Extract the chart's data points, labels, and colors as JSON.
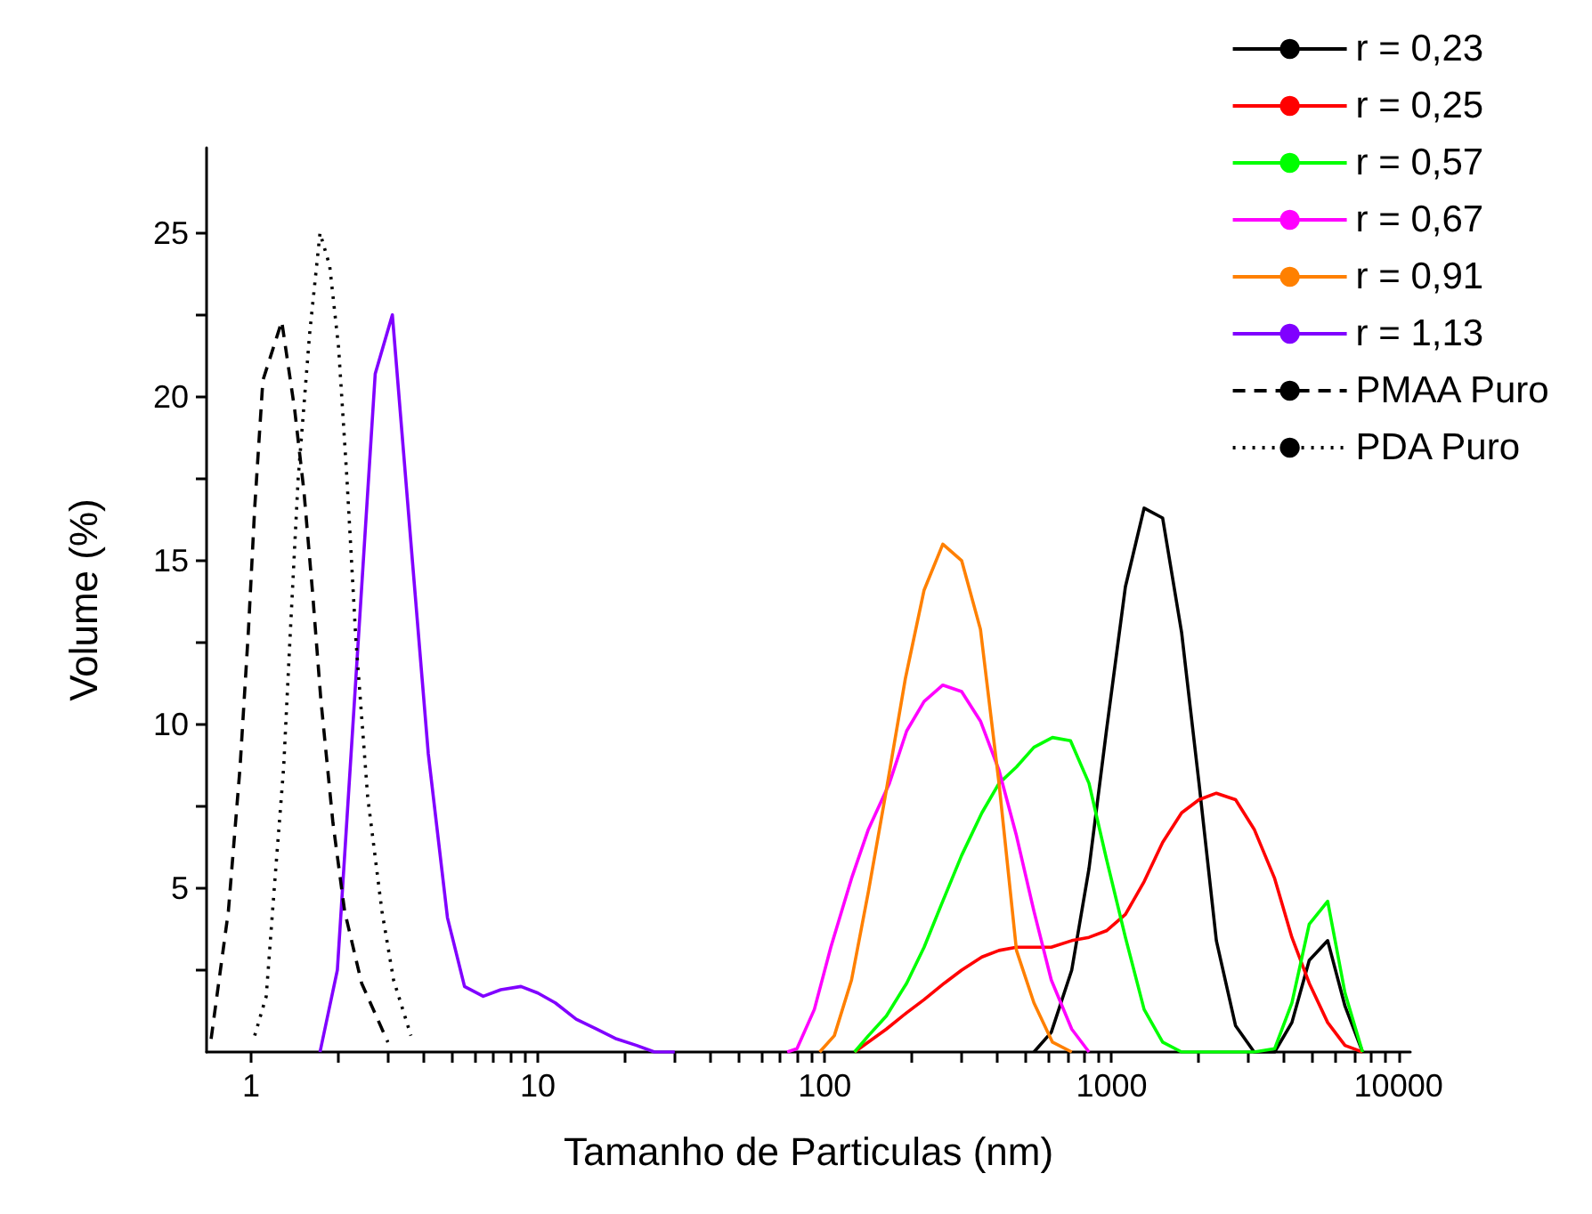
{
  "chart_data": {
    "type": "line",
    "xlabel": "Tamanho de Particulas (nm)",
    "ylabel": "Volume (%)",
    "log": "x",
    "xlim": [
      0.7,
      11000
    ],
    "ylim": [
      0,
      27.6
    ],
    "xticks": [
      1,
      {
        "value": 2,
        "label": null
      },
      {
        "value": 3,
        "label": null
      },
      {
        "value": 4,
        "label": null
      },
      {
        "value": 5,
        "label": null
      },
      {
        "value": 6,
        "label": null
      },
      {
        "value": 7,
        "label": null
      },
      {
        "value": 8,
        "label": null
      },
      {
        "value": 9,
        "label": null
      },
      10,
      {
        "value": 20,
        "label": null
      },
      {
        "value": 30,
        "label": null
      },
      {
        "value": 40,
        "label": null
      },
      {
        "value": 50,
        "label": null
      },
      {
        "value": 60,
        "label": null
      },
      {
        "value": 70,
        "label": null
      },
      {
        "value": 80,
        "label": null
      },
      {
        "value": 90,
        "label": null
      },
      100,
      {
        "value": 200,
        "label": null
      },
      {
        "value": 300,
        "label": null
      },
      {
        "value": 400,
        "label": null
      },
      {
        "value": 500,
        "label": null
      },
      {
        "value": 600,
        "label": null
      },
      {
        "value": 700,
        "label": null
      },
      {
        "value": 800,
        "label": null
      },
      {
        "value": 900,
        "label": null
      },
      1000,
      {
        "value": 2000,
        "label": null
      },
      {
        "value": 3000,
        "label": null
      },
      {
        "value": 4000,
        "label": null
      },
      {
        "value": 5000,
        "label": null
      },
      {
        "value": 6000,
        "label": null
      },
      {
        "value": 7000,
        "label": null
      },
      {
        "value": 8000,
        "label": null
      },
      {
        "value": 9000,
        "label": null
      },
      10000
    ],
    "yticks": [
      {
        "value": 2.5,
        "label": null
      },
      5,
      {
        "value": 7.5,
        "label": null
      },
      10,
      {
        "value": 12.5,
        "label": null
      },
      15,
      {
        "value": 17.5,
        "label": null
      },
      20,
      {
        "value": 22.5,
        "label": null
      },
      25
    ],
    "grid": false,
    "legend": "top right",
    "marker": "none",
    "series": [
      {
        "name": "r = 0,23",
        "color": "#000000",
        "line_style": "solid",
        "x": [
          536,
          616,
          726,
          834,
          959,
          1117,
          1298,
          1506,
          1754,
          2017,
          2318,
          2705,
          3140,
          3700,
          4250,
          4885,
          5665,
          6510,
          7495
        ],
        "values": [
          0,
          0.6,
          2.5,
          5.6,
          9.8,
          14.2,
          16.6,
          16.3,
          12.8,
          8.2,
          3.4,
          0.8,
          0,
          0,
          0.9,
          2.8,
          3.4,
          1.4,
          0
        ]
      },
      {
        "name": "r = 0,25",
        "color": "#ff0000",
        "line_style": "solid",
        "x": [
          127,
          164,
          193,
          222,
          261,
          300,
          353,
          405,
          466,
          536,
          616,
          726,
          834,
          959,
          1117,
          1298,
          1506,
          1754,
          2017,
          2318,
          2705,
          3140,
          3700,
          4250,
          4885,
          5665,
          6510,
          7495
        ],
        "values": [
          0,
          0.7,
          1.2,
          1.6,
          2.1,
          2.5,
          2.9,
          3.1,
          3.2,
          3.2,
          3.2,
          3.4,
          3.5,
          3.7,
          4.2,
          5.2,
          6.4,
          7.3,
          7.7,
          7.9,
          7.7,
          6.8,
          5.3,
          3.5,
          2.1,
          0.9,
          0.2,
          0
        ]
      },
      {
        "name": "r = 0,57",
        "color": "#00ff00",
        "line_style": "solid",
        "x": [
          127,
          142,
          164,
          193,
          222,
          255,
          300,
          353,
          405,
          466,
          536,
          622,
          719,
          834,
          959,
          1117,
          1298,
          1506,
          1754,
          2017,
          2318,
          2705,
          3140,
          3700,
          4250,
          4885,
          5665,
          6510,
          7495
        ],
        "values": [
          0,
          0.5,
          1.1,
          2.1,
          3.2,
          4.5,
          6,
          7.3,
          8.2,
          8.7,
          9.3,
          9.6,
          9.5,
          8.2,
          5.9,
          3.5,
          1.3,
          0.3,
          0,
          0,
          0,
          0,
          0,
          0.1,
          1.5,
          3.9,
          4.6,
          1.8,
          0
        ]
      },
      {
        "name": "r = 0,67",
        "color": "#ff00ff",
        "line_style": "solid",
        "x": [
          74,
          80,
          92,
          105,
          124,
          142,
          168,
          193,
          222,
          258,
          300,
          349,
          405,
          466,
          536,
          616,
          726,
          834
        ],
        "values": [
          0,
          0.1,
          1.3,
          3.2,
          5.3,
          6.8,
          8.2,
          9.8,
          10.7,
          11.2,
          11,
          10.1,
          8.6,
          6.6,
          4.3,
          2.2,
          0.7,
          0
        ]
      },
      {
        "name": "r = 0,91",
        "color": "#ff8000",
        "line_style": "solid",
        "x": [
          96,
          108,
          124,
          142,
          164,
          191,
          222,
          258,
          300,
          349,
          405,
          466,
          536,
          622,
          726
        ],
        "values": [
          0,
          0.5,
          2.2,
          4.9,
          8,
          11.4,
          14.1,
          15.5,
          15,
          12.9,
          8.2,
          3.1,
          1.5,
          0.3,
          0
        ]
      },
      {
        "name": "r = 1,13",
        "color": "#8000ff",
        "line_style": "solid",
        "x": [
          1.74,
          2,
          2.71,
          3.11,
          3.66,
          4.15,
          4.84,
          5.55,
          6.45,
          7.43,
          8.73,
          10,
          11.5,
          13.6,
          16,
          18.8,
          22.1,
          25.5,
          30
        ],
        "values": [
          0,
          2.5,
          20.7,
          22.5,
          14.9,
          9.1,
          4.1,
          2,
          1.7,
          1.9,
          2,
          1.8,
          1.5,
          1,
          0.7,
          0.4,
          0.2,
          0,
          0
        ]
      },
      {
        "name": "PMAA Puro",
        "color": "#000000",
        "line_style": "dashed",
        "x": [
          0.726,
          0.834,
          0.916,
          0.98,
          1.03,
          1.1,
          1.28,
          1.42,
          1.53,
          1.64,
          1.75,
          1.93,
          2.12,
          2.43,
          3
        ],
        "values": [
          0.4,
          4.3,
          8.7,
          12.9,
          16.6,
          20.5,
          22.3,
          19.6,
          17.1,
          14,
          10.8,
          7,
          4.3,
          2.1,
          0.3
        ]
      },
      {
        "name": "PDA Puro",
        "color": "#000000",
        "line_style": "dotted",
        "x": [
          1.03,
          1.13,
          1.21,
          1.3,
          1.36,
          1.46,
          1.6,
          1.74,
          1.88,
          2.02,
          2.16,
          2.32,
          2.55,
          2.86,
          3.14,
          3.61
        ],
        "values": [
          0.5,
          1.7,
          5.2,
          8.7,
          12.2,
          17.5,
          21.9,
          25,
          24,
          21.5,
          17.5,
          12.6,
          7.8,
          4.3,
          2.2,
          0.5
        ]
      }
    ]
  }
}
